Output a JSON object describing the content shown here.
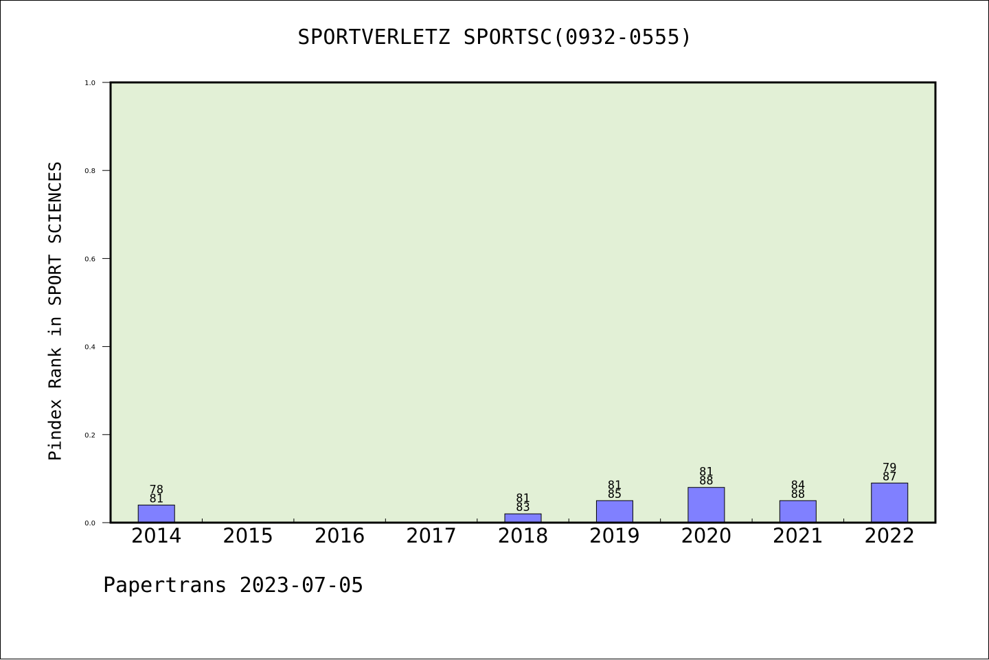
{
  "title": "SPORTVERLETZ SPORTSC(0932-0555)",
  "footer": "Papertrans 2023-07-05",
  "colors": {
    "plot_bg": "#e2f0d6",
    "bar": "#8080ff"
  },
  "chart_data": {
    "type": "bar",
    "title": "SPORTVERLETZ SPORTSC(0932-0555)",
    "ylabel": "Pindex Rank in SPORT SCIENCES",
    "xlabel": "",
    "ylim": [
      0,
      1.0
    ],
    "yticks": [
      "0.0",
      "0.2",
      "0.4",
      "0.6",
      "0.8",
      "1.0"
    ],
    "categories": [
      "2014",
      "2015",
      "2016",
      "2017",
      "2018",
      "2019",
      "2020",
      "2021",
      "2022"
    ],
    "values": [
      0.04,
      0,
      0,
      0,
      0.02,
      0.05,
      0.08,
      0.05,
      0.09
    ],
    "labels": [
      [
        "78",
        "81"
      ],
      [],
      [],
      [],
      [
        "81",
        "83"
      ],
      [
        "81",
        "85"
      ],
      [
        "81",
        "88"
      ],
      [
        "84",
        "88"
      ],
      [
        "79",
        "87"
      ]
    ],
    "grid": false,
    "legend": "none"
  }
}
